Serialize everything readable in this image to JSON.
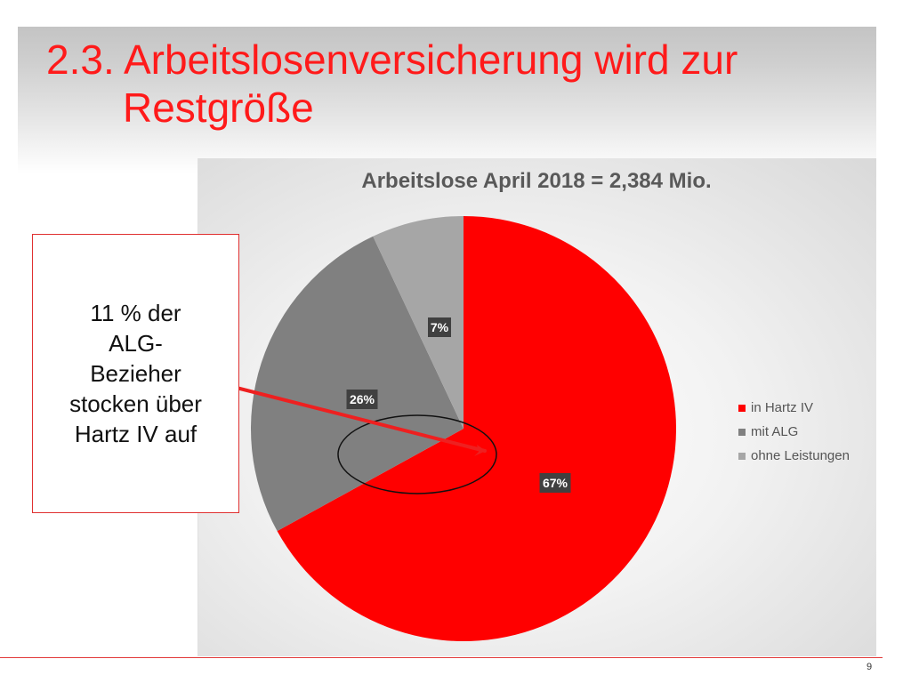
{
  "slide": {
    "title_line1": "2.3. Arbeitslosenversicherung wird zur",
    "title_line2": "Restgröße",
    "page_number": "9",
    "accent_color": "#ff1a1a"
  },
  "callout": {
    "lines": [
      "11 % der",
      "ALG-",
      "Bezieher",
      "stocken über",
      "Hartz IV auf"
    ]
  },
  "chart_data": {
    "type": "pie",
    "title": "Arbeitslose April 2018 = 2,384 Mio.",
    "categories": [
      "in Hartz IV",
      "mit ALG",
      "ohne Leistungen"
    ],
    "values": [
      67,
      26,
      7
    ],
    "labels": [
      "67%",
      "26%",
      "7%"
    ],
    "colors": [
      "#ff0000",
      "#808080",
      "#a6a6a6"
    ],
    "start_angle_deg": 0,
    "direction": "clockwise",
    "legend_position": "right"
  }
}
